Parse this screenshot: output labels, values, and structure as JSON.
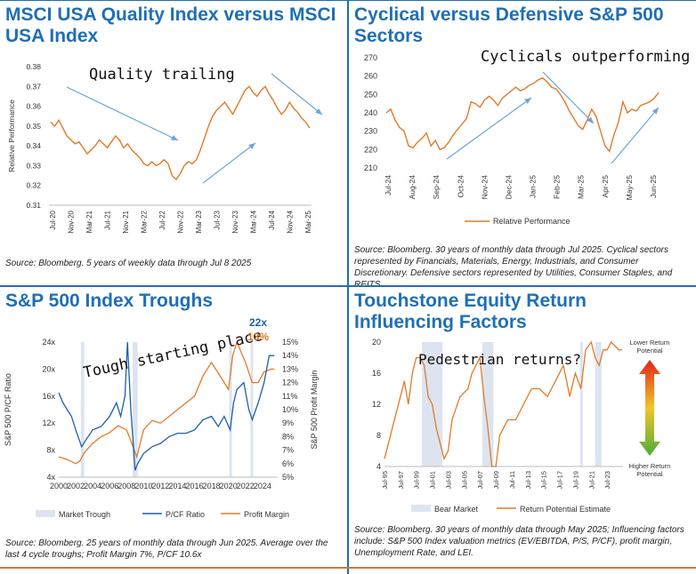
{
  "chart_data": [
    {
      "type": "line",
      "title": "MSCI USA Quality Index versus MSCI USA Index",
      "ylabel": "Relative Performance",
      "ylim": [
        0.31,
        0.38
      ],
      "yticks": [
        "0.38",
        "0.37",
        "0.36",
        "0.35",
        "0.34",
        "0.33",
        "0.32",
        "0.31"
      ],
      "xticks": [
        "Jul-20",
        "Nov-20",
        "Mar-21",
        "Jul-21",
        "Nov-21",
        "Mar-22",
        "Jul-22",
        "Nov-22",
        "Mar-23",
        "Jul-23",
        "Nov-23",
        "Mar-24",
        "Jul-24",
        "Nov-24",
        "Mar-25"
      ],
      "annotation": "Quality trailing",
      "series": [
        {
          "name": "Relative Performance",
          "color": "#e07b2a",
          "values": [
            0.352,
            0.35,
            0.353,
            0.349,
            0.345,
            0.343,
            0.341,
            0.342,
            0.339,
            0.336,
            0.338,
            0.34,
            0.343,
            0.341,
            0.339,
            0.342,
            0.345,
            0.343,
            0.339,
            0.341,
            0.338,
            0.336,
            0.334,
            0.331,
            0.33,
            0.332,
            0.33,
            0.331,
            0.333,
            0.331,
            0.325,
            0.323,
            0.326,
            0.33,
            0.332,
            0.331,
            0.333,
            0.338,
            0.344,
            0.35,
            0.355,
            0.358,
            0.36,
            0.362,
            0.359,
            0.356,
            0.36,
            0.364,
            0.368,
            0.37,
            0.367,
            0.365,
            0.368,
            0.37,
            0.366,
            0.363,
            0.359,
            0.356,
            0.358,
            0.362,
            0.359,
            0.357,
            0.354,
            0.352,
            0.349
          ]
        }
      ],
      "source": "Source: Bloomberg. 5 years of weekly data through Jul 8 2025"
    },
    {
      "type": "line",
      "title": "Cyclical versus Defensive S&P 500 Sectors",
      "ylim": [
        210,
        270
      ],
      "yticks": [
        "270",
        "260",
        "250",
        "240",
        "230",
        "220",
        "210"
      ],
      "xticks": [
        "Jul-24",
        "Aug-24",
        "Sep-24",
        "Oct-24",
        "Nov-24",
        "Dec-24",
        "Jan-25",
        "Feb-25",
        "Mar-25",
        "Apr-25",
        "May-25",
        "Jun-25"
      ],
      "annotation": "Cyclicals outperforming",
      "legend": "Relative Performance",
      "series": [
        {
          "name": "Relative Performance",
          "color": "#e07b2a",
          "values": [
            240,
            242,
            236,
            232,
            230,
            222,
            221,
            224,
            226,
            229,
            222,
            225,
            220,
            221,
            224,
            228,
            231,
            234,
            237,
            246,
            245,
            243,
            247,
            249,
            247,
            244,
            248,
            250,
            252,
            254,
            252,
            253,
            255,
            256,
            258,
            259,
            257,
            254,
            253,
            250,
            246,
            241,
            237,
            233,
            231,
            236,
            242,
            238,
            230,
            222,
            219,
            228,
            235,
            246,
            240,
            242,
            241,
            244,
            245,
            246,
            248,
            251
          ]
        }
      ],
      "source": "Source: Bloomberg. 30 years of monthly data through Jul 2025. Cyclical sectors represented by Financials, Materials, Energy, Industrials, and Consumer Discretionary. Defensive sectors represented by Utilities, Consumer Staples, and REITS."
    },
    {
      "type": "line",
      "title": "S&P 500 Index Troughs",
      "ylabel": "S&P 500 P/CF Ratio",
      "y2label": "S&P 500 Profit Margin",
      "ylim": [
        4,
        24
      ],
      "y2lim": [
        5,
        15
      ],
      "yticks": [
        "24x",
        "20x",
        "16x",
        "12x",
        "8x",
        "4x"
      ],
      "y2ticks": [
        "15%",
        "14%",
        "13%",
        "12%",
        "11%",
        "10%",
        "9%",
        "8%",
        "7%",
        "6%",
        "5%"
      ],
      "xticks": [
        "2000",
        "2002",
        "2004",
        "2006",
        "2008",
        "2010",
        "2012",
        "2014",
        "2016",
        "2018",
        "2020",
        "2022",
        "2024"
      ],
      "annotation": "Tough starting place",
      "current_pcf": "22x",
      "current_margin": "13%",
      "legend": [
        "Market Trough",
        "P/CF Ratio",
        "Profit Margin"
      ],
      "troughs": [
        [
          2002.6,
          2003.0
        ],
        [
          2008.7,
          2009.3
        ],
        [
          2020.1,
          2020.4
        ],
        [
          2022.6,
          2022.9
        ]
      ],
      "series": [
        {
          "name": "P/CF Ratio",
          "color": "#1f5fa8",
          "points": [
            [
              2000,
              16.5
            ],
            [
              2000.5,
              15
            ],
            [
              2001,
              14
            ],
            [
              2001.5,
              13
            ],
            [
              2002,
              11
            ],
            [
              2002.7,
              8.5
            ],
            [
              2003.2,
              9.5
            ],
            [
              2004,
              11
            ],
            [
              2005,
              11.5
            ],
            [
              2006,
              13
            ],
            [
              2006.8,
              15
            ],
            [
              2007.3,
              13
            ],
            [
              2007.8,
              16
            ],
            [
              2008.1,
              24
            ],
            [
              2008.5,
              14
            ],
            [
              2009.0,
              5
            ],
            [
              2009.3,
              6
            ],
            [
              2010,
              7.5
            ],
            [
              2011,
              8.5
            ],
            [
              2012,
              9
            ],
            [
              2013,
              10
            ],
            [
              2014,
              10.5
            ],
            [
              2015,
              10.5
            ],
            [
              2016,
              11
            ],
            [
              2017,
              12.5
            ],
            [
              2018,
              13
            ],
            [
              2018.8,
              11.5
            ],
            [
              2019.5,
              13
            ],
            [
              2020.2,
              11
            ],
            [
              2020.6,
              15
            ],
            [
              2021,
              17
            ],
            [
              2021.8,
              18
            ],
            [
              2022.4,
              14
            ],
            [
              2022.8,
              12.5
            ],
            [
              2023.5,
              15
            ],
            [
              2024.2,
              18
            ],
            [
              2024.8,
              22
            ],
            [
              2025.4,
              22
            ]
          ]
        },
        {
          "name": "Profit Margin",
          "color": "#e07b2a",
          "points": [
            [
              2000,
              6.5
            ],
            [
              2001,
              6.3
            ],
            [
              2002,
              6.0
            ],
            [
              2002.5,
              6.2
            ],
            [
              2003,
              6.8
            ],
            [
              2004,
              7.5
            ],
            [
              2005,
              8.0
            ],
            [
              2006,
              8.3
            ],
            [
              2007,
              8.8
            ],
            [
              2008,
              8.5
            ],
            [
              2008.6,
              7.5
            ],
            [
              2009.2,
              6.5
            ],
            [
              2010,
              8.5
            ],
            [
              2011,
              9.2
            ],
            [
              2012,
              9.0
            ],
            [
              2013,
              9.5
            ],
            [
              2014,
              10
            ],
            [
              2015,
              10.5
            ],
            [
              2016,
              11
            ],
            [
              2017,
              12.5
            ],
            [
              2018,
              13.5
            ],
            [
              2019,
              12.5
            ],
            [
              2020,
              11.5
            ],
            [
              2020.5,
              14
            ],
            [
              2021,
              15
            ],
            [
              2022,
              13.5
            ],
            [
              2022.8,
              12
            ],
            [
              2023.5,
              12
            ],
            [
              2024.2,
              12.8
            ],
            [
              2025,
              13
            ],
            [
              2025.4,
              13
            ]
          ]
        }
      ],
      "source": "Source: Bloomberg. 25 years of monthly data through Jun 2025. Average over the last 4 cycle troughs; Profit Margin 7%, P/CF 10.6x"
    },
    {
      "type": "line",
      "title": "Touchstone Equity Return Influencing Factors",
      "ylim": [
        4,
        20
      ],
      "yticks": [
        "20",
        "16",
        "12",
        "8",
        "4"
      ],
      "xticks": [
        "Jul-95",
        "Jul-97",
        "Jul-99",
        "Jul-01",
        "Jul-03",
        "Jul-05",
        "Jul-07",
        "Jul-09",
        "Jul-11",
        "Jul-13",
        "Jul-15",
        "Jul-17",
        "Jul-19",
        "Jul-21",
        "Jul-23"
      ],
      "annotation": "Pedestrian returns?",
      "gauge_top": "Lower Return Potential",
      "gauge_bottom": "Higher Return Potential",
      "legend": [
        "Bear Market",
        "Return Potential Estimate"
      ],
      "bear_markets": [
        [
          2000.2,
          2002.8
        ],
        [
          2007.8,
          2009.2
        ],
        [
          2020.1,
          2020.3
        ],
        [
          2022.0,
          2022.8
        ]
      ],
      "series": [
        {
          "name": "Return Potential Estimate",
          "color": "#e07b2a",
          "points": [
            [
              1995.5,
              5
            ],
            [
              1996,
              7
            ],
            [
              1996.5,
              9
            ],
            [
              1997,
              11
            ],
            [
              1997.5,
              13
            ],
            [
              1998,
              15
            ],
            [
              1998.5,
              12
            ],
            [
              1999,
              16
            ],
            [
              1999.5,
              18
            ],
            [
              2000,
              18
            ],
            [
              2000.5,
              17
            ],
            [
              2001,
              13
            ],
            [
              2001.5,
              12
            ],
            [
              2002,
              9
            ],
            [
              2002.5,
              7
            ],
            [
              2003,
              5
            ],
            [
              2003.5,
              6
            ],
            [
              2004,
              10
            ],
            [
              2005,
              13
            ],
            [
              2006,
              14
            ],
            [
              2006.5,
              16
            ],
            [
              2007,
              17
            ],
            [
              2007.5,
              18
            ],
            [
              2008,
              13
            ],
            [
              2008.5,
              9
            ],
            [
              2009,
              4
            ],
            [
              2009.5,
              4
            ],
            [
              2010,
              8
            ],
            [
              2010.5,
              9
            ],
            [
              2011,
              10
            ],
            [
              2012,
              10
            ],
            [
              2013,
              12
            ],
            [
              2014,
              14
            ],
            [
              2015,
              14
            ],
            [
              2016,
              13
            ],
            [
              2017,
              15
            ],
            [
              2018,
              17
            ],
            [
              2018.8,
              13
            ],
            [
              2019.5,
              16
            ],
            [
              2020.2,
              14
            ],
            [
              2020.8,
              19
            ],
            [
              2021.5,
              20
            ],
            [
              2022,
              18
            ],
            [
              2022.5,
              17
            ],
            [
              2023,
              19
            ],
            [
              2023.5,
              19
            ],
            [
              2024,
              20
            ],
            [
              2025,
              19
            ],
            [
              2025.4,
              19
            ]
          ]
        }
      ],
      "source": "Source: Bloomberg. 30 years of monthly data through May 2025; Influencing factors include: S&P 500 Index valuation metrics (EV/EBITDA, P/S, P/CF), profit margin, Unemployment Rate, and LEI."
    }
  ]
}
